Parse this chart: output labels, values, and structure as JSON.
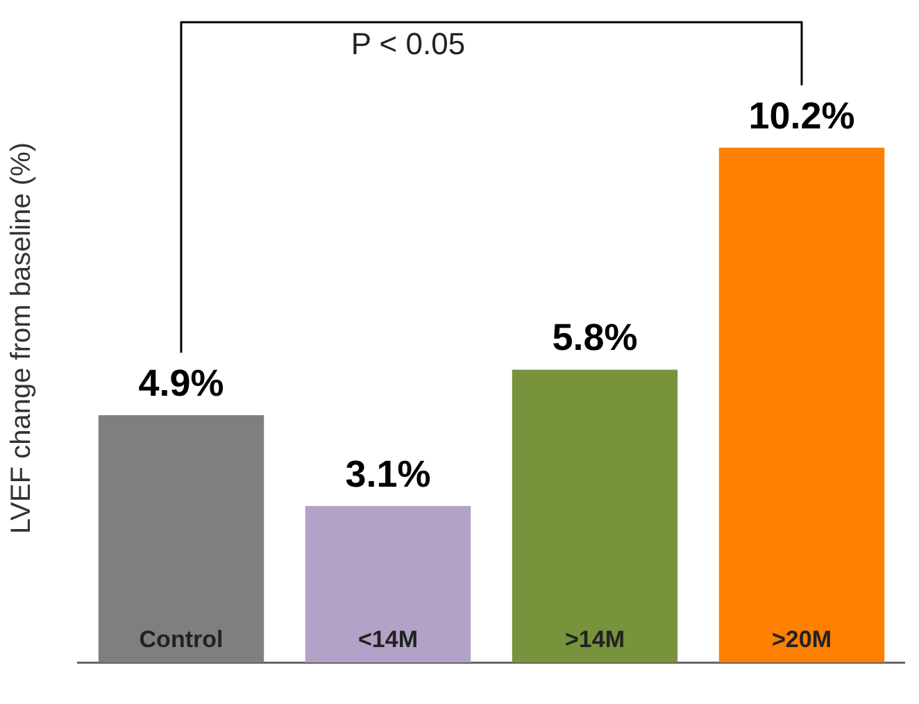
{
  "chart_data": {
    "type": "bar",
    "ylabel": "LVEF change from baseline (%)",
    "categories": [
      "Control",
      "<14M",
      ">14M",
      ">20M"
    ],
    "values": [
      4.9,
      3.1,
      5.8,
      10.2
    ],
    "colors": [
      "#7f7f7f",
      "#b3a2c7",
      "#77933c",
      "#ff7f00"
    ],
    "data_labels": true,
    "value_labels": [
      "4.9%",
      "3.1%",
      "5.8%",
      "10.2%"
    ],
    "annotations": [
      "P < 0.05"
    ],
    "grid": false,
    "legend": false
  }
}
